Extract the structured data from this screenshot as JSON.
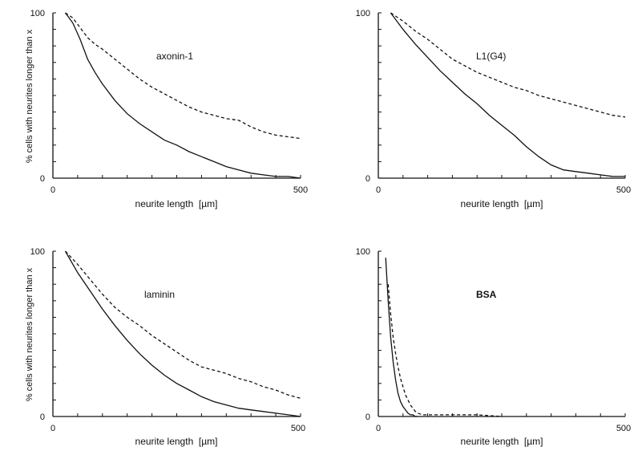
{
  "chart_data": [
    {
      "type": "line",
      "panel_label": "axonin-1",
      "ylabel": "% cells with neurites longer than x",
      "xlabel": "neurite length  [µm]",
      "xlim": [
        0,
        500
      ],
      "ylim": [
        0,
        100
      ],
      "x_tick_labels": [
        "0",
        "500"
      ],
      "y_tick_labels": [
        "0",
        "100"
      ],
      "grid": false,
      "series": [
        {
          "style": "solid",
          "x": [
            25,
            40,
            55,
            70,
            85,
            100,
            125,
            150,
            175,
            200,
            225,
            250,
            275,
            300,
            325,
            350,
            375,
            400,
            425,
            450,
            475,
            500
          ],
          "y": [
            100,
            94,
            84,
            72,
            64,
            57,
            47,
            39,
            33,
            28,
            23,
            20,
            16,
            13,
            10,
            7,
            5,
            3,
            2,
            1,
            1,
            0
          ]
        },
        {
          "style": "dashed",
          "x": [
            25,
            40,
            55,
            70,
            85,
            100,
            125,
            150,
            175,
            200,
            225,
            250,
            275,
            300,
            325,
            350,
            375,
            400,
            425,
            450,
            475,
            500
          ],
          "y": [
            100,
            97,
            91,
            85,
            81,
            78,
            72,
            66,
            60,
            55,
            51,
            47,
            43,
            40,
            38,
            36,
            35,
            31,
            28,
            26,
            25,
            24
          ]
        }
      ]
    },
    {
      "type": "line",
      "panel_label": "L1(G4)",
      "ylabel": "",
      "xlabel": "neurite length  [µm]",
      "xlim": [
        0,
        500
      ],
      "ylim": [
        0,
        100
      ],
      "x_tick_labels": [
        "0",
        "500"
      ],
      "y_tick_labels": [
        "0",
        "100"
      ],
      "grid": false,
      "series": [
        {
          "style": "solid",
          "x": [
            25,
            50,
            75,
            100,
            125,
            150,
            175,
            200,
            225,
            250,
            275,
            300,
            325,
            350,
            375,
            400,
            425,
            450,
            475,
            500
          ],
          "y": [
            100,
            90,
            81,
            73,
            65,
            58,
            51,
            45,
            38,
            32,
            26,
            19,
            13,
            8,
            5,
            4,
            3,
            2,
            1,
            1
          ]
        },
        {
          "style": "dashed",
          "x": [
            25,
            50,
            75,
            100,
            125,
            150,
            175,
            200,
            225,
            250,
            275,
            300,
            325,
            350,
            375,
            400,
            425,
            450,
            475,
            500
          ],
          "y": [
            100,
            95,
            89,
            84,
            78,
            72,
            68,
            64,
            61,
            58,
            55,
            53,
            50,
            48,
            46,
            44,
            42,
            40,
            38,
            37
          ]
        }
      ]
    },
    {
      "type": "line",
      "panel_label": "laminin",
      "ylabel": "% cells with neurites longer than x",
      "xlabel": "neurite length  [µm]",
      "xlim": [
        0,
        500
      ],
      "ylim": [
        0,
        100
      ],
      "x_tick_labels": [
        "0",
        "500"
      ],
      "y_tick_labels": [
        "0",
        "100"
      ],
      "grid": false,
      "series": [
        {
          "style": "solid",
          "x": [
            25,
            50,
            75,
            100,
            125,
            150,
            175,
            200,
            225,
            250,
            275,
            300,
            325,
            350,
            375,
            400,
            425,
            450,
            475,
            500
          ],
          "y": [
            100,
            87,
            76,
            65,
            55,
            46,
            38,
            31,
            25,
            20,
            16,
            12,
            9,
            7,
            5,
            4,
            3,
            2,
            1,
            0
          ]
        },
        {
          "style": "dashed",
          "x": [
            25,
            50,
            75,
            100,
            125,
            150,
            175,
            200,
            225,
            250,
            275,
            300,
            325,
            350,
            375,
            400,
            425,
            450,
            475,
            500
          ],
          "y": [
            100,
            92,
            83,
            74,
            66,
            60,
            55,
            49,
            44,
            39,
            34,
            30,
            28,
            26,
            23,
            21,
            18,
            16,
            13,
            11
          ]
        }
      ]
    },
    {
      "type": "line",
      "panel_label": "BSA",
      "ylabel": "",
      "xlabel": "neurite length  [µm]",
      "xlim": [
        0,
        500
      ],
      "ylim": [
        0,
        100
      ],
      "x_tick_labels": [
        "0",
        "500"
      ],
      "y_tick_labels": [
        "0",
        "100"
      ],
      "grid": false,
      "series": [
        {
          "style": "solid",
          "x": [
            15,
            20,
            25,
            30,
            35,
            40,
            45,
            50,
            55,
            60,
            65,
            70,
            75,
            80
          ],
          "y": [
            96,
            70,
            48,
            33,
            22,
            14,
            9,
            6,
            4,
            2,
            1,
            1,
            0,
            0
          ]
        },
        {
          "style": "dashed",
          "x": [
            20,
            25,
            30,
            35,
            40,
            45,
            50,
            55,
            60,
            65,
            70,
            75,
            80,
            90,
            100,
            150,
            200,
            250
          ],
          "y": [
            80,
            62,
            48,
            38,
            30,
            23,
            18,
            13,
            10,
            7,
            5,
            3,
            2,
            1,
            1,
            1,
            1,
            0
          ]
        }
      ]
    }
  ]
}
